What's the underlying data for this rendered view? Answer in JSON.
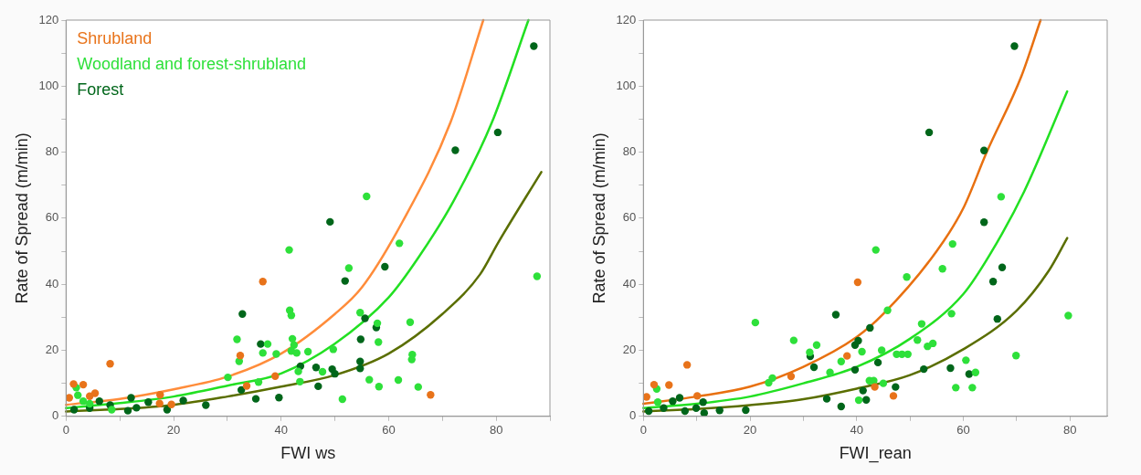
{
  "chart_data": [
    {
      "type": "scatter",
      "xlabel": "FWI ws",
      "ylabel": "Rate of Spread (m/min)",
      "xlim": [
        0,
        90
      ],
      "ylim": [
        0,
        120
      ],
      "xticks": [
        0,
        {
          "value": 10,
          "label": null
        },
        20,
        {
          "value": 30,
          "label": null
        },
        40,
        {
          "value": 50,
          "label": null
        },
        60,
        {
          "value": 70,
          "label": null
        },
        80,
        {
          "value": 90,
          "label": null
        }
      ],
      "yticks": [
        0,
        {
          "value": 10,
          "label": null
        },
        20,
        {
          "value": 30,
          "label": null
        },
        40,
        {
          "value": 50,
          "label": null
        },
        60,
        {
          "value": 70,
          "label": null
        },
        80,
        {
          "value": 90,
          "label": null
        },
        100,
        {
          "value": 110,
          "label": null
        },
        120
      ],
      "grid": false,
      "legend": "top left",
      "marker": "circle",
      "series": [
        {
          "name": "Shrubland",
          "color": "#e8731a",
          "x": [
            36.6,
            8.2,
            32.4,
            38.9,
            33.6,
            67.8,
            1.4,
            3.2,
            4.4,
            5.4,
            0.6,
            17.5,
            17.4,
            19.6
          ],
          "values": [
            40.8,
            15.9,
            18.4,
            12.2,
            9.2,
            6.5,
            9.8,
            9.6,
            6.1,
            7.0,
            5.6,
            6.5,
            3.9,
            3.6
          ]
        },
        {
          "name": "Woodland and forest-shrubland",
          "color": "#2ee03a",
          "x": [
            55.9,
            41.5,
            62.0,
            52.6,
            87.6,
            41.6,
            41.9,
            54.7,
            57.9,
            64.0,
            31.8,
            37.5,
            42.1,
            42.4,
            41.9,
            42.9,
            36.6,
            39.1,
            45.0,
            49.7,
            58.1,
            64.4,
            64.3,
            32.2,
            30.1,
            35.8,
            43.2,
            47.7,
            43.5,
            56.4,
            61.8,
            58.2,
            65.5,
            51.4,
            1.9,
            2.2,
            3.2,
            4.4,
            8.5
          ],
          "values": [
            66.6,
            50.4,
            52.4,
            44.9,
            42.4,
            32.1,
            30.6,
            31.4,
            28.2,
            28.5,
            23.3,
            21.9,
            23.5,
            21.6,
            19.8,
            19.2,
            19.2,
            18.9,
            19.6,
            20.3,
            22.5,
            18.7,
            17.2,
            16.7,
            11.8,
            10.4,
            13.6,
            13.5,
            10.5,
            11.1,
            11.0,
            9.0,
            8.9,
            5.2,
            8.7,
            6.4,
            4.6,
            3.8,
            2.0
          ]
        },
        {
          "name": "Forest",
          "color": "#00661a",
          "x": [
            87.0,
            80.3,
            72.4,
            49.1,
            59.3,
            51.9,
            32.8,
            36.2,
            55.6,
            57.7,
            54.8,
            54.7,
            54.7,
            43.6,
            46.5,
            49.5,
            50.0,
            46.9,
            32.6,
            35.3,
            39.6,
            26.0,
            21.8,
            18.8,
            12.1,
            13.1,
            11.5,
            15.3,
            6.2,
            8.2,
            4.4,
            1.5
          ],
          "values": [
            112.1,
            86.0,
            80.6,
            58.9,
            45.3,
            41.0,
            31.0,
            21.9,
            29.7,
            26.9,
            23.3,
            16.6,
            14.5,
            15.2,
            14.8,
            14.3,
            12.9,
            9.1,
            8.0,
            5.3,
            5.7,
            3.4,
            4.8,
            2.0,
            5.6,
            2.6,
            1.7,
            4.3,
            4.6,
            3.4,
            2.5,
            2.0
          ]
        },
        {
          "type": "line",
          "color": "#ff8c3a",
          "marker": "none",
          "x": [
            0,
            10,
            20,
            30,
            40,
            50,
            55,
            62.6,
            71.5,
            77.6
          ],
          "values": [
            3.5,
            5.3,
            8.2,
            12,
            19,
            31,
            39,
            59,
            89,
            120
          ]
        },
        {
          "type": "line",
          "color": "#22e022",
          "marker": "none",
          "x": [
            0,
            10,
            20,
            30,
            40,
            50,
            60,
            65.5,
            72,
            79.2,
            86
          ],
          "values": [
            2.5,
            4,
            6,
            9.3,
            13,
            22,
            36,
            48,
            65,
            89,
            120
          ]
        },
        {
          "type": "line",
          "color": "#5a6e00",
          "marker": "none",
          "x": [
            0,
            10,
            20,
            30,
            40,
            50,
            60,
            70,
            77,
            80.4,
            88.4
          ],
          "values": [
            1.5,
            2.2,
            3.5,
            6,
            9,
            12.5,
            19,
            31,
            43,
            52.7,
            74
          ]
        }
      ]
    },
    {
      "type": "scatter",
      "xlabel": "FWI_rean",
      "ylabel": "Rate of Spread (m/min)",
      "xlim": [
        0,
        87
      ],
      "ylim": [
        0,
        120
      ],
      "xticks": [
        0,
        {
          "value": 10,
          "label": null
        },
        20,
        {
          "value": 30,
          "label": null
        },
        40,
        {
          "value": 50,
          "label": null
        },
        60,
        {
          "value": 70,
          "label": null
        },
        80
      ],
      "yticks": [
        0,
        {
          "value": 10,
          "label": null
        },
        20,
        {
          "value": 30,
          "label": null
        },
        40,
        {
          "value": 50,
          "label": null
        },
        60,
        {
          "value": 70,
          "label": null
        },
        80,
        {
          "value": 90,
          "label": null
        },
        100,
        {
          "value": 110,
          "label": null
        },
        120
      ],
      "grid": false,
      "marker": "circle",
      "series": [
        {
          "color": "#e8731a",
          "x": [
            40.2,
            8.2,
            38.2,
            27.7,
            43.4,
            46.9,
            2.0,
            4.8,
            0.6,
            10.1
          ],
          "values": [
            40.6,
            15.6,
            18.3,
            12.1,
            8.9,
            6.2,
            9.6,
            9.5,
            5.9,
            6.2
          ]
        },
        {
          "color": "#2ee03a",
          "x": [
            67.1,
            58.0,
            43.6,
            56.1,
            49.4,
            79.7,
            21.0,
            45.8,
            57.8,
            52.2,
            28.2,
            32.5,
            31.2,
            41.0,
            44.7,
            51.4,
            53.3,
            54.3,
            47.5,
            48.5,
            49.6,
            69.9,
            60.5,
            62.3,
            37.1,
            35.0,
            24.2,
            23.5,
            42.4,
            43.2,
            45.0,
            58.6,
            61.7,
            40.4,
            2.5,
            2.7
          ],
          "values": [
            66.5,
            52.2,
            50.4,
            44.7,
            42.2,
            30.5,
            28.4,
            32.1,
            31.1,
            28.0,
            23.0,
            21.6,
            19.4,
            19.6,
            20.0,
            23.1,
            21.2,
            22.1,
            18.8,
            18.8,
            18.8,
            18.4,
            17.0,
            13.3,
            16.6,
            13.3,
            11.6,
            10.2,
            10.8,
            10.8,
            10.0,
            8.7,
            8.7,
            4.9,
            8.3,
            4.3
          ]
        },
        {
          "color": "#00661a",
          "x": [
            69.6,
            53.6,
            63.9,
            63.9,
            67.3,
            65.6,
            36.1,
            66.4,
            42.5,
            39.7,
            40.3,
            31.3,
            32.0,
            39.7,
            44.0,
            52.6,
            57.6,
            61.1,
            47.3,
            41.2,
            41.8,
            34.4,
            37.1,
            19.2,
            14.3,
            11.4,
            11.2,
            9.9,
            7.8,
            6.8,
            5.5,
            3.8,
            1.0
          ],
          "values": [
            112.1,
            86.0,
            80.5,
            58.8,
            45.1,
            40.8,
            30.8,
            29.5,
            26.8,
            21.6,
            22.9,
            18.2,
            14.9,
            14.1,
            16.3,
            14.3,
            14.6,
            12.8,
            8.9,
            7.8,
            5.0,
            5.3,
            3.0,
            1.9,
            1.8,
            1.0,
            4.3,
            2.5,
            1.6,
            5.6,
            4.6,
            2.5,
            1.6
          ]
        },
        {
          "type": "line",
          "color": "#e87010",
          "marker": "none",
          "x": [
            0,
            10,
            20,
            30,
            40,
            45,
            55,
            60,
            64.4,
            70.9,
            74.5
          ],
          "values": [
            3.8,
            6,
            9,
            15,
            24,
            31,
            50,
            63,
            80,
            103,
            120
          ]
        },
        {
          "type": "line",
          "color": "#22e022",
          "marker": "none",
          "x": [
            0,
            10,
            20,
            30,
            40,
            50,
            60,
            65,
            71.4,
            79.5
          ],
          "values": [
            2.5,
            3.8,
            6,
            10,
            15,
            23.5,
            37,
            49,
            68,
            98.4
          ]
        },
        {
          "type": "line",
          "color": "#5a6e00",
          "marker": "none",
          "x": [
            0,
            10,
            20,
            30,
            40,
            50,
            60,
            70,
            76,
            79.5
          ],
          "values": [
            1.5,
            2.2,
            3.4,
            5.2,
            8.4,
            12.5,
            20.3,
            32,
            44,
            54
          ]
        }
      ]
    }
  ]
}
